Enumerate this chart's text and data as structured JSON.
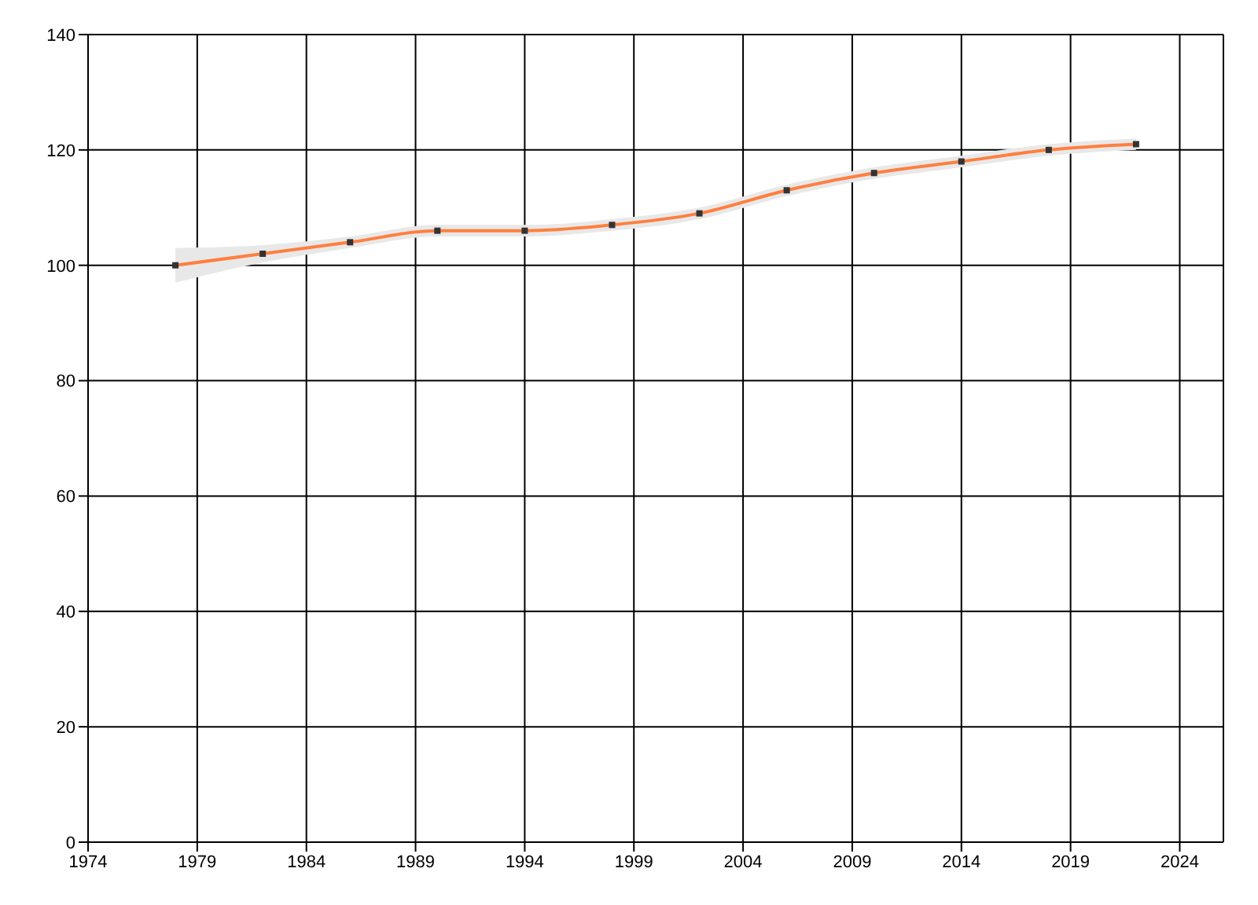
{
  "chart_data": {
    "type": "line",
    "x": [
      1978,
      1982,
      1986,
      1990,
      1994,
      1998,
      2002,
      2006,
      2010,
      2014,
      2018,
      2022
    ],
    "series": [
      {
        "color": "#ff7f3f",
        "values": [
          100,
          102,
          104,
          106,
          106,
          107,
          109,
          113,
          116,
          118,
          120,
          121
        ],
        "lower": [
          97,
          100.5,
          103,
          105,
          105,
          106,
          108,
          112,
          115,
          117,
          119,
          120
        ],
        "upper": [
          103,
          103.5,
          105,
          107,
          107,
          108,
          110,
          114,
          117,
          119,
          121,
          122
        ]
      }
    ],
    "xlim": [
      1974,
      2026
    ],
    "xticks": [
      1974,
      1979,
      1984,
      1989,
      1994,
      1999,
      2004,
      2009,
      2014,
      2019,
      2024
    ],
    "ylim": [
      0,
      140
    ],
    "yticks": [
      0,
      20,
      40,
      60,
      80,
      100,
      120,
      140
    ],
    "grid": true,
    "marker": "square",
    "line_style": "solid"
  }
}
